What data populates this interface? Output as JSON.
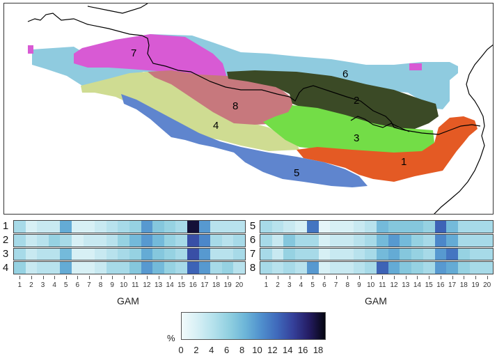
{
  "map": {
    "region_labels": [
      "1",
      "2",
      "3",
      "4",
      "5",
      "6",
      "7",
      "8"
    ],
    "region_colors": {
      "1": "#e45a24",
      "2": "#3b4a26",
      "3": "#73dd47",
      "4": "#cfdc92",
      "5": "#5f85ce",
      "6": "#8fcbdf",
      "7": "#d85ad4",
      "8": "#c7787d"
    }
  },
  "heatmaps": {
    "left_row_labels": [
      "1",
      "2",
      "3",
      "4"
    ],
    "right_row_labels": [
      "5",
      "6",
      "7",
      "8"
    ],
    "left_rows": [
      [
        5,
        2,
        3,
        3,
        9,
        2,
        2,
        3,
        4,
        5,
        6,
        10,
        7,
        6,
        5,
        18,
        10,
        4,
        4,
        4
      ],
      [
        5,
        3,
        4,
        6,
        5,
        2,
        3,
        3,
        4,
        6,
        8,
        10,
        8,
        6,
        5,
        14,
        11,
        5,
        4,
        5
      ],
      [
        5,
        3,
        4,
        4,
        8,
        2,
        2,
        3,
        4,
        5,
        6,
        9,
        7,
        6,
        5,
        14,
        10,
        4,
        4,
        5
      ],
      [
        6,
        3,
        4,
        4,
        9,
        2,
        2,
        3,
        5,
        5,
        7,
        10,
        8,
        6,
        5,
        13,
        10,
        5,
        6,
        4
      ]
    ],
    "right_rows": [
      [
        5,
        4,
        3,
        2,
        12,
        1,
        2,
        2,
        3,
        4,
        8,
        7,
        7,
        7,
        6,
        13,
        8,
        5,
        5,
        5
      ],
      [
        5,
        3,
        7,
        5,
        5,
        2,
        3,
        3,
        4,
        5,
        8,
        10,
        8,
        6,
        5,
        11,
        9,
        5,
        5,
        5
      ],
      [
        5,
        3,
        6,
        5,
        5,
        2,
        3,
        3,
        4,
        5,
        8,
        9,
        7,
        6,
        5,
        10,
        12,
        6,
        5,
        5
      ],
      [
        5,
        4,
        5,
        4,
        10,
        2,
        3,
        3,
        4,
        5,
        13,
        9,
        7,
        6,
        5,
        10,
        9,
        6,
        5,
        5
      ]
    ],
    "x_ticks": [
      "1",
      "2",
      "3",
      "4",
      "5",
      "6",
      "7",
      "8",
      "9",
      "10",
      "11",
      "12",
      "13",
      "14",
      "15",
      "16",
      "17",
      "18",
      "19",
      "20"
    ],
    "x_title": "GAM"
  },
  "colorbar": {
    "unit": "%",
    "ticks": [
      "0",
      "2",
      "4",
      "6",
      "8",
      "10",
      "12",
      "14",
      "16",
      "18"
    ],
    "min": 0,
    "max": 19,
    "colors": [
      "#f2fbfb",
      "#d6eff5",
      "#b4e1ec",
      "#90cfe0",
      "#6cb5d8",
      "#4f8fcd",
      "#3f69bb",
      "#35409a",
      "#241c62",
      "#050510"
    ]
  }
}
